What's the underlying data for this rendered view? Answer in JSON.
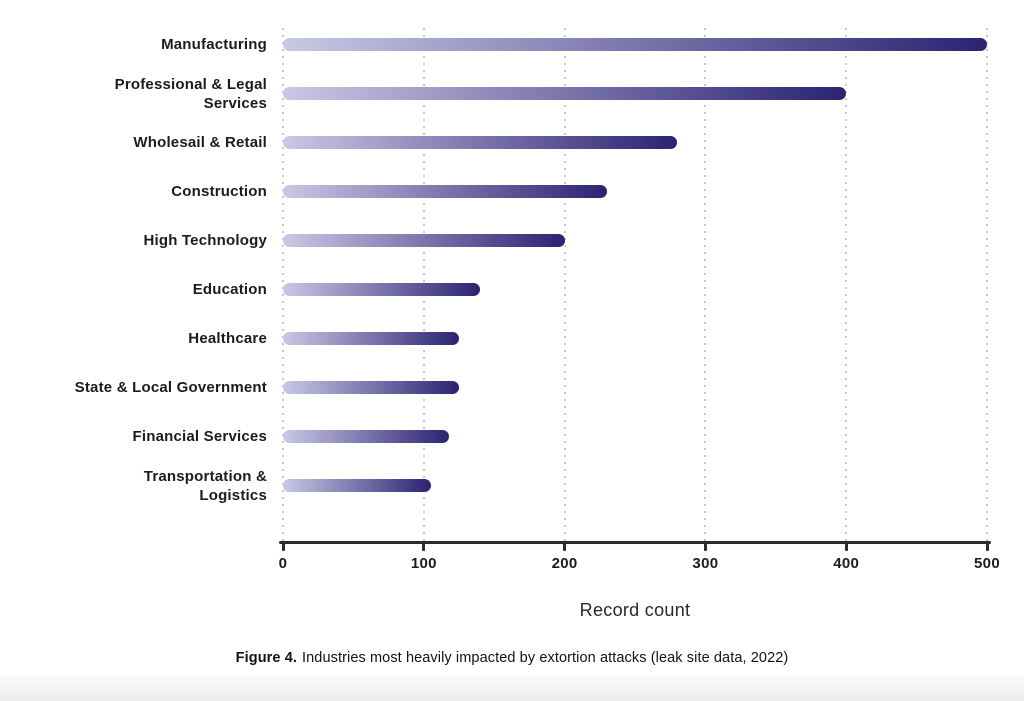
{
  "chart_data": {
    "type": "bar",
    "orientation": "horizontal",
    "title": "",
    "xlabel": "Record count",
    "ylabel": "",
    "xlim": [
      0,
      500
    ],
    "x_ticks": [
      0,
      100,
      200,
      300,
      400,
      500
    ],
    "grid": "dotted-vertical",
    "bar_gradient": [
      "#c9c8e5",
      "#2b2372"
    ],
    "categories": [
      "Manufacturing",
      "Professional & Legal Services",
      "Wholesail & Retail",
      "Construction",
      "High Technology",
      "Education",
      "Healthcare",
      "State & Local Government",
      "Financial Services",
      "Transportation & Logistics"
    ],
    "values": [
      500,
      400,
      280,
      230,
      200,
      140,
      125,
      125,
      118,
      105
    ],
    "rows": [
      {
        "lines": [
          "Manufacturing"
        ],
        "value": 500
      },
      {
        "lines": [
          "Professional & Legal",
          "Services"
        ],
        "value": 400
      },
      {
        "lines": [
          "Wholesail & Retail"
        ],
        "value": 280
      },
      {
        "lines": [
          "Construction"
        ],
        "value": 230
      },
      {
        "lines": [
          "High Technology"
        ],
        "value": 200
      },
      {
        "lines": [
          "Education"
        ],
        "value": 140
      },
      {
        "lines": [
          "Healthcare"
        ],
        "value": 125
      },
      {
        "lines": [
          "State & Local Government"
        ],
        "value": 125
      },
      {
        "lines": [
          "Financial Services"
        ],
        "value": 118
      },
      {
        "lines": [
          "Transportation &",
          "Logistics"
        ],
        "value": 105
      }
    ]
  },
  "caption": {
    "label": "Figure 4.",
    "text": "Industries most heavily impacted by extortion attacks (leak site data, 2022)"
  }
}
